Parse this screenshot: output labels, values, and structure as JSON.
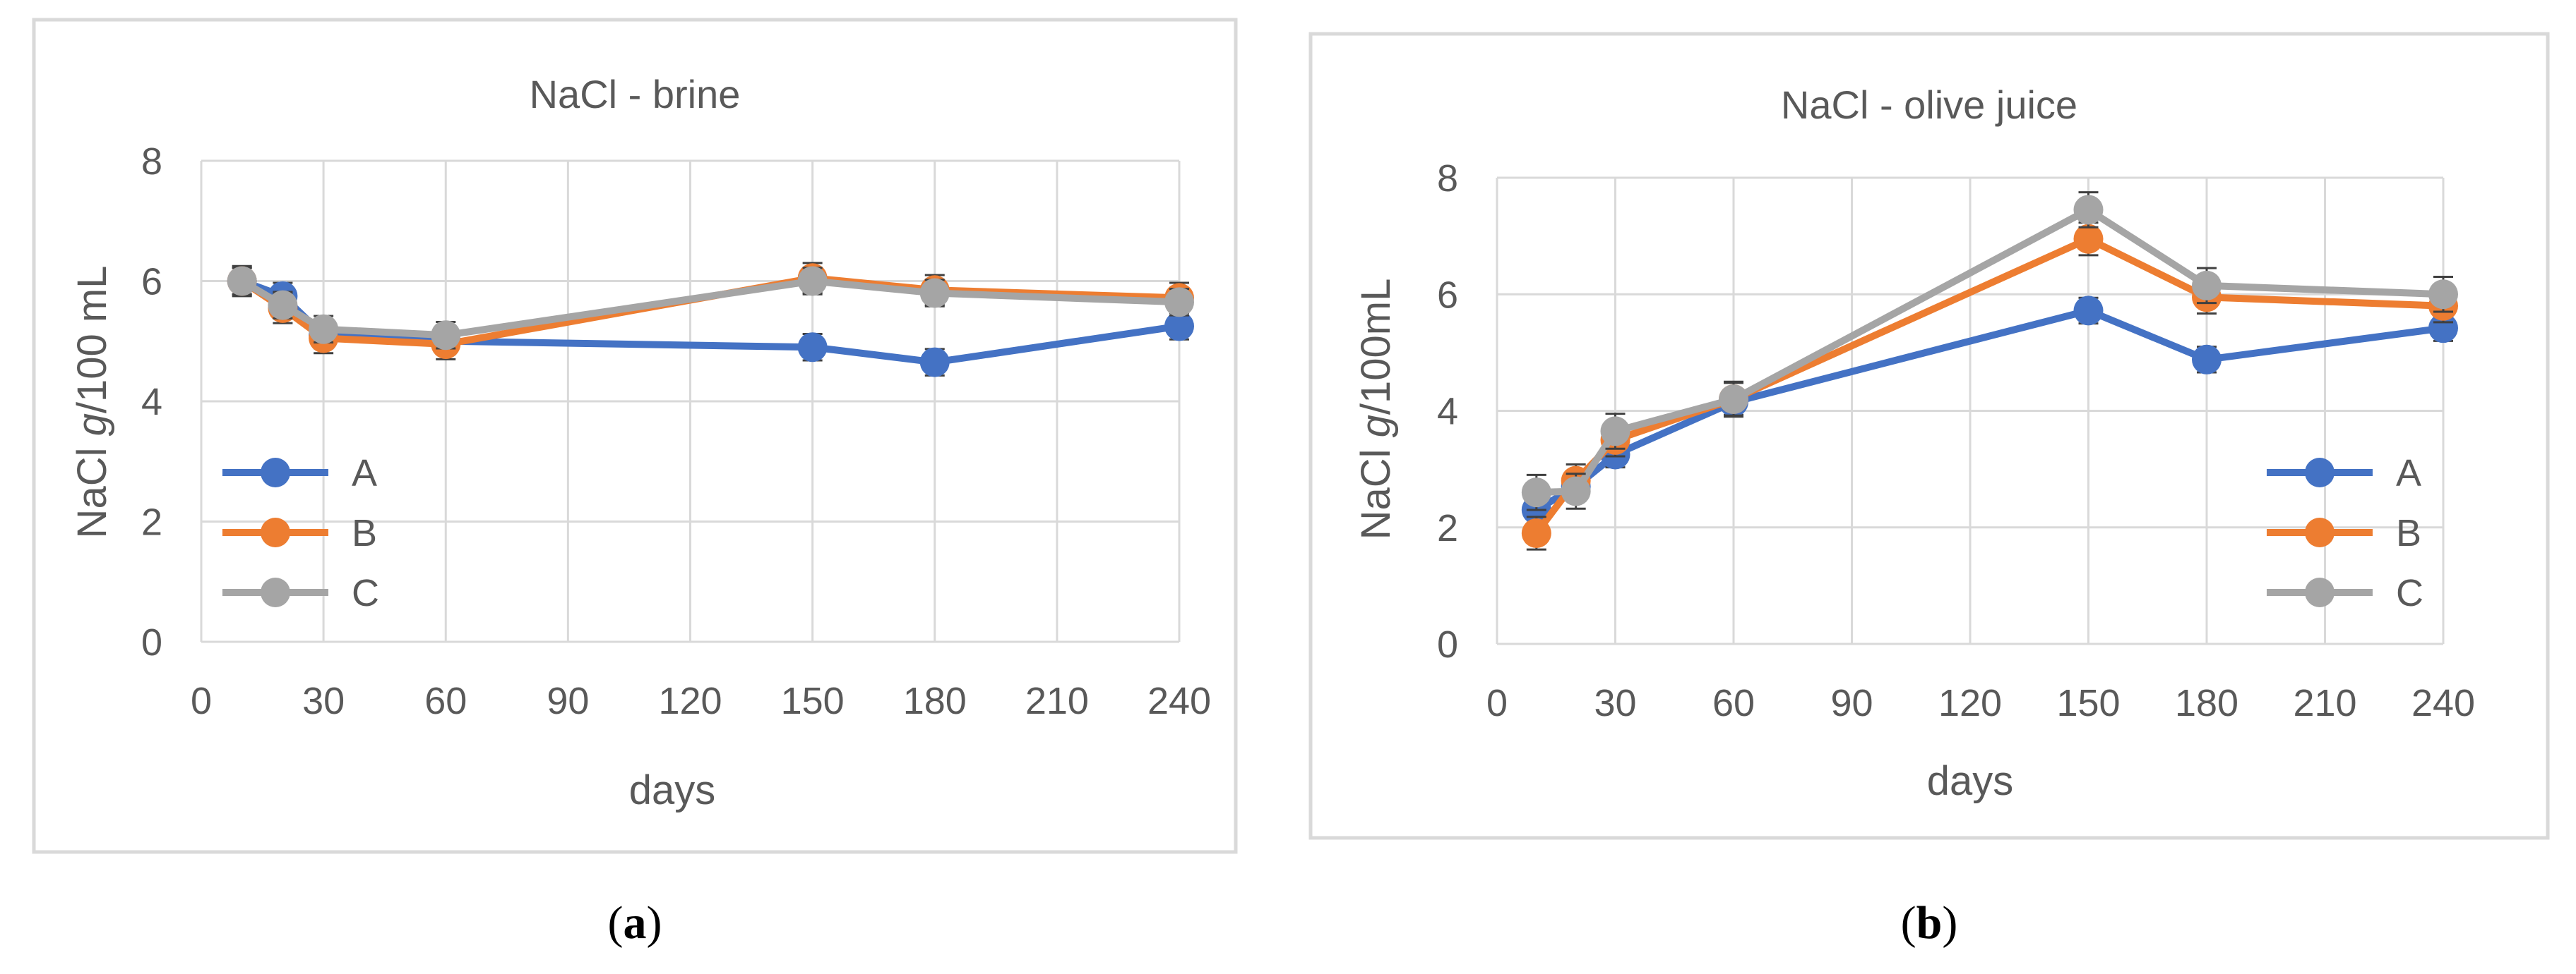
{
  "colors": {
    "A": "#4472C4",
    "B": "#ED7D31",
    "C": "#A5A5A5"
  },
  "chart_data": [
    {
      "type": "line",
      "title": "NaCl - brine",
      "xlabel": "days",
      "ylabel_prefix": "NaCl ",
      "ylabel_italic": "g",
      "ylabel_suffix": "/100 mL",
      "xlim": [
        0,
        240
      ],
      "ylim": [
        0,
        8
      ],
      "xticks": [
        "0",
        "30",
        "60",
        "90",
        "120",
        "150",
        "180",
        "210",
        "240"
      ],
      "yticks": [
        "0",
        "2",
        "4",
        "6",
        "8"
      ],
      "x": [
        10,
        20,
        30,
        60,
        150,
        180,
        240
      ],
      "legend_position": "center-left",
      "caption_open": "(",
      "caption_letter": "a",
      "caption_close": ")",
      "series": [
        {
          "name": "A",
          "values": [
            6.0,
            5.75,
            5.1,
            5.0,
            4.9,
            4.65,
            5.25
          ],
          "err": 0.22
        },
        {
          "name": "B",
          "values": [
            6.0,
            5.55,
            5.05,
            4.95,
            6.05,
            5.85,
            5.72
          ],
          "err": 0.25
        },
        {
          "name": "C",
          "values": [
            6.0,
            5.6,
            5.2,
            5.1,
            6.0,
            5.8,
            5.65
          ],
          "err": 0.22
        }
      ]
    },
    {
      "type": "line",
      "title": "NaCl - olive juice",
      "xlabel": "days",
      "ylabel_prefix": "NaCl ",
      "ylabel_italic": "g",
      "ylabel_suffix": "/100mL",
      "xlim": [
        0,
        240
      ],
      "ylim": [
        0,
        8
      ],
      "xticks": [
        "0",
        "30",
        "60",
        "90",
        "120",
        "150",
        "180",
        "210",
        "240"
      ],
      "yticks": [
        "0",
        "2",
        "4",
        "6",
        "8"
      ],
      "x": [
        10,
        20,
        30,
        60,
        150,
        180,
        240
      ],
      "legend_position": "bottom-right",
      "caption_open": "(",
      "caption_letter": "b",
      "caption_close": ")",
      "series": [
        {
          "name": "A",
          "values": [
            2.3,
            2.7,
            3.25,
            4.15,
            5.72,
            4.88,
            5.42
          ],
          "err": 0.22
        },
        {
          "name": "B",
          "values": [
            1.9,
            2.8,
            3.5,
            4.2,
            6.95,
            5.95,
            5.8
          ],
          "err": 0.28
        },
        {
          "name": "C",
          "values": [
            2.6,
            2.62,
            3.65,
            4.2,
            7.45,
            6.15,
            6.0
          ],
          "err": 0.3
        }
      ]
    }
  ]
}
